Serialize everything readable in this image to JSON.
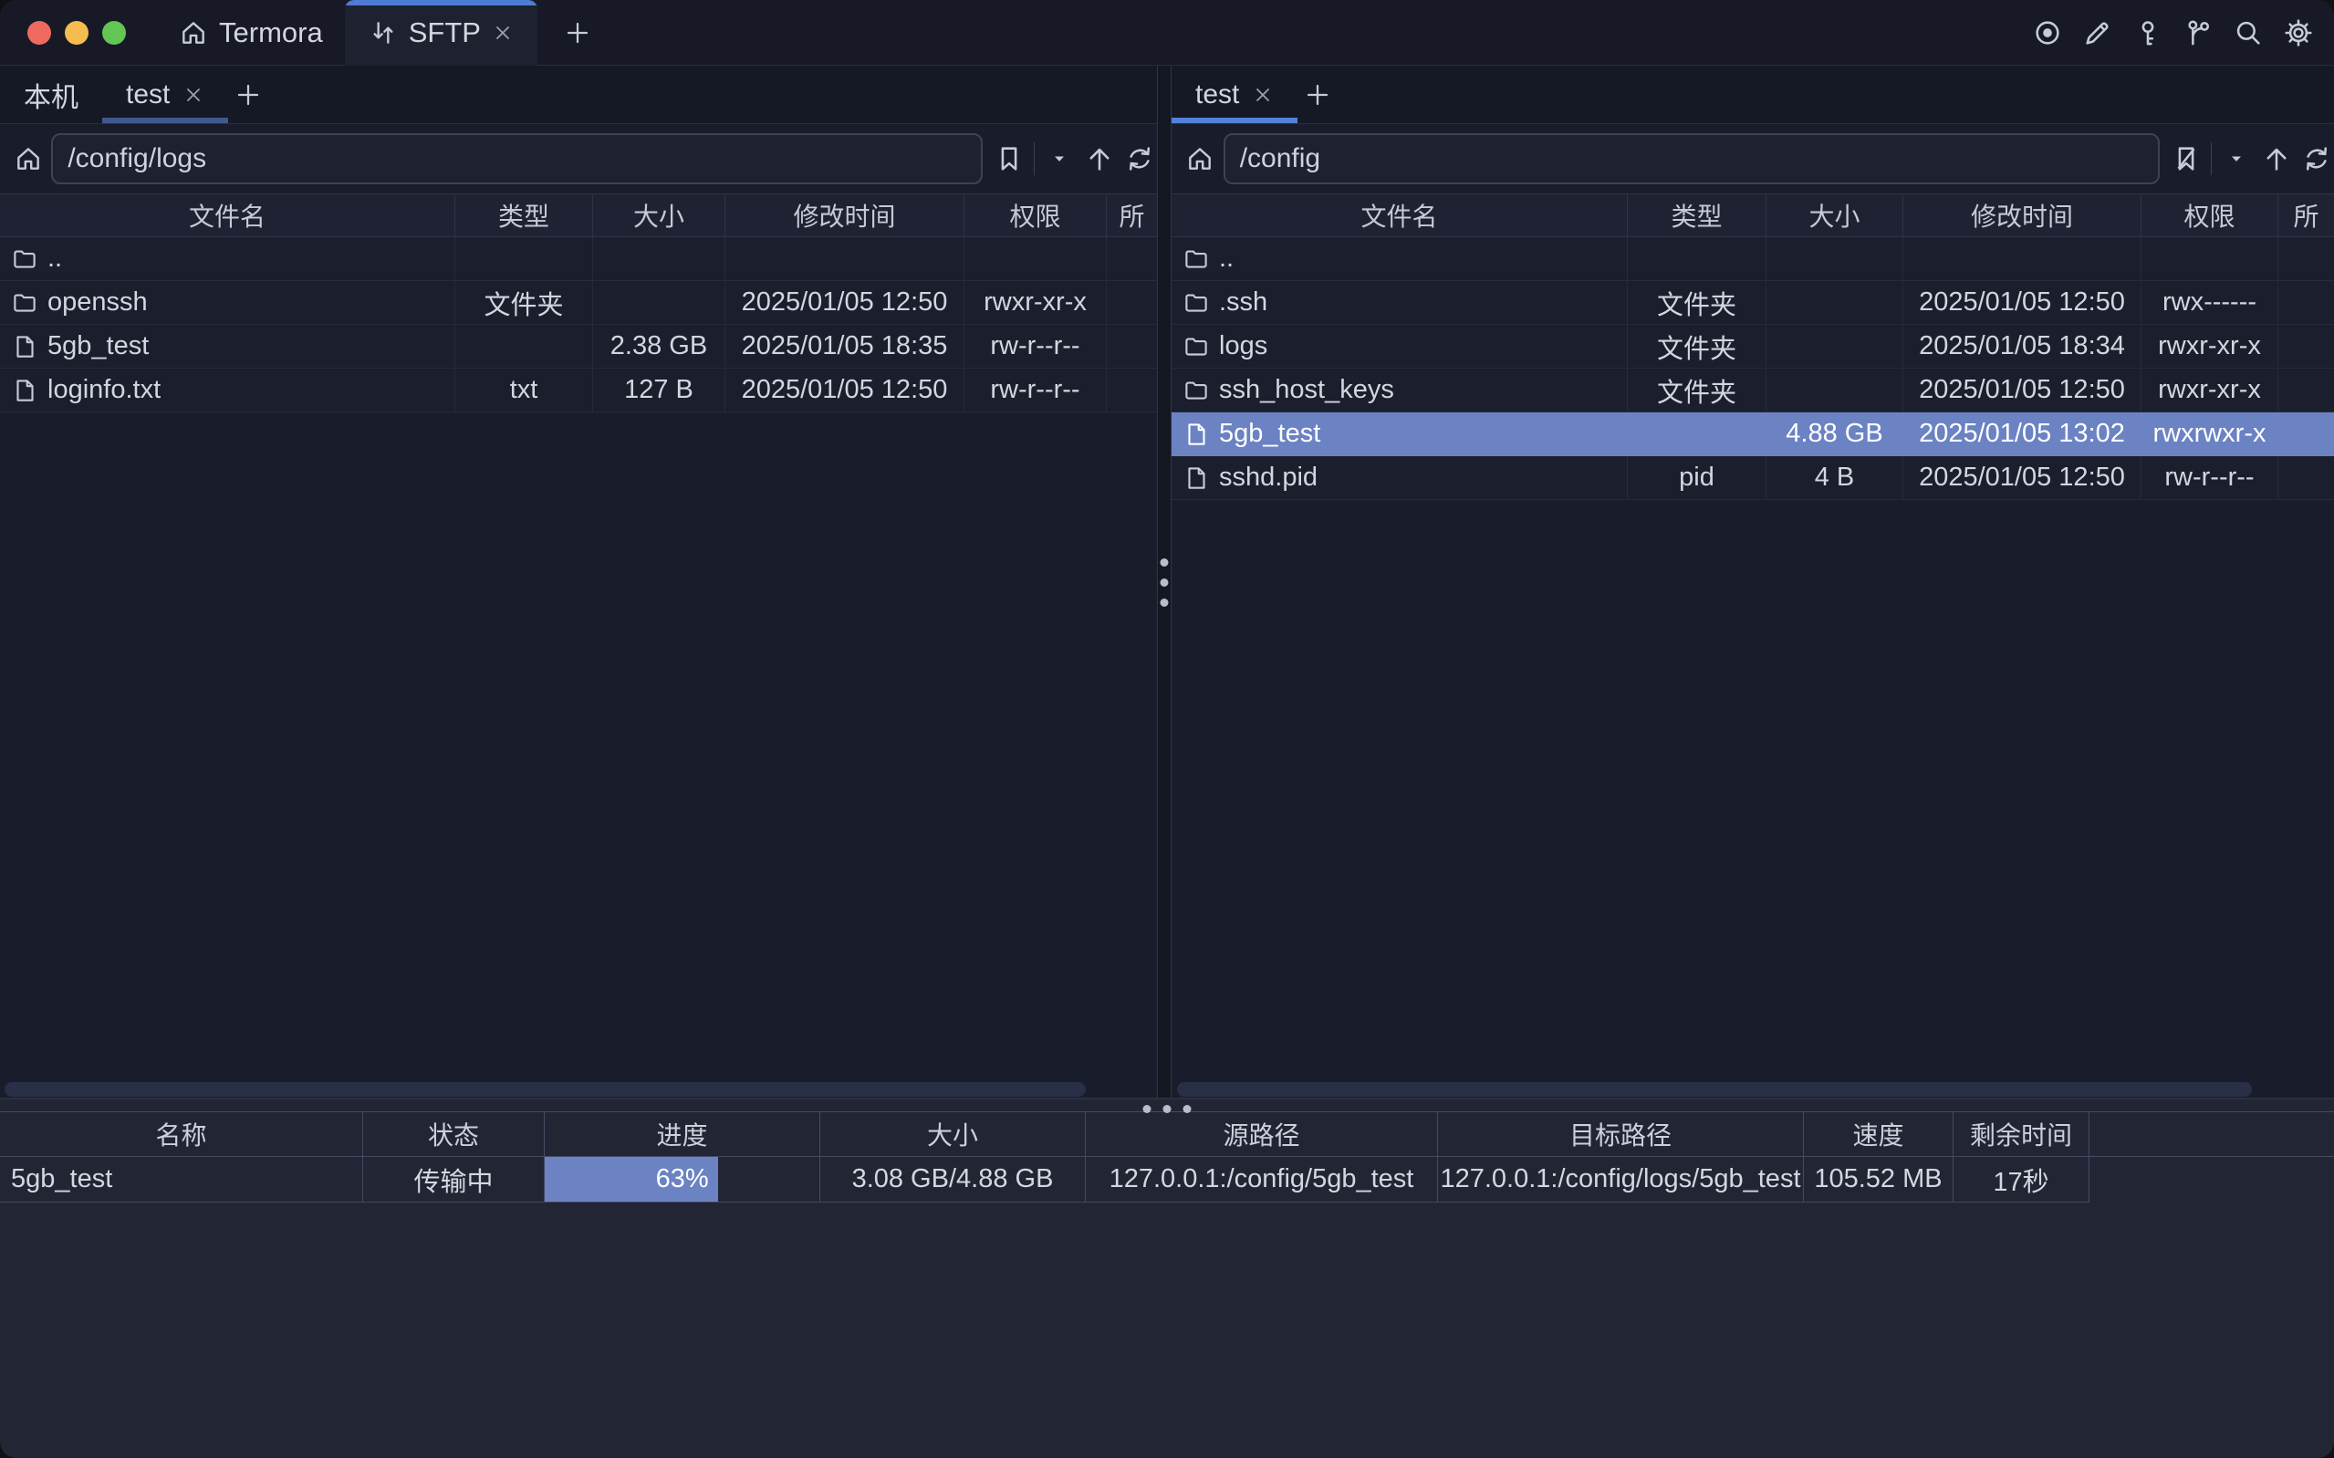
{
  "colors": {
    "accent_tab_stripe": "#4e7cd4",
    "selection": "#6b82c3",
    "underline_left_pane": "#41598c",
    "underline_right_pane": "#5282d8",
    "traffic_red": "#ee6a5f",
    "traffic_yellow": "#f5bd4f",
    "traffic_green": "#62c554"
  },
  "titlebar": {
    "app_tab_label": "Termora",
    "sftp_tab_label": "SFTP",
    "action_icons": [
      "record-icon",
      "edit-icon",
      "key-icon",
      "branch-icon",
      "search-icon",
      "settings-icon"
    ]
  },
  "left_pane": {
    "tabs": [
      {
        "label": "本机"
      },
      {
        "label": "test",
        "closable": true,
        "active": true
      }
    ],
    "path": "/config/logs",
    "columns": [
      "文件名",
      "类型",
      "大小",
      "修改时间",
      "权限",
      "所"
    ],
    "selected_index": -1,
    "rows": [
      {
        "icon": "folder",
        "name": "..",
        "type": "",
        "size": "",
        "modified": "",
        "perm": ""
      },
      {
        "icon": "folder",
        "name": "openssh",
        "type": "文件夹",
        "size": "",
        "modified": "2025/01/05 12:50",
        "perm": "rwxr-xr-x"
      },
      {
        "icon": "file",
        "name": "5gb_test",
        "type": "",
        "size": "2.38 GB",
        "modified": "2025/01/05 18:35",
        "perm": "rw-r--r--"
      },
      {
        "icon": "file",
        "name": "loginfo.txt",
        "type": "txt",
        "size": "127 B",
        "modified": "2025/01/05 12:50",
        "perm": "rw-r--r--"
      }
    ]
  },
  "right_pane": {
    "tabs": [
      {
        "label": "test",
        "closable": true,
        "active": true
      }
    ],
    "path": "/config",
    "columns": [
      "文件名",
      "类型",
      "大小",
      "修改时间",
      "权限",
      "所"
    ],
    "selected_index": 4,
    "rows": [
      {
        "icon": "folder",
        "name": "..",
        "type": "",
        "size": "",
        "modified": "",
        "perm": ""
      },
      {
        "icon": "folder",
        "name": ".ssh",
        "type": "文件夹",
        "size": "",
        "modified": "2025/01/05 12:50",
        "perm": "rwx------"
      },
      {
        "icon": "folder",
        "name": "logs",
        "type": "文件夹",
        "size": "",
        "modified": "2025/01/05 18:34",
        "perm": "rwxr-xr-x"
      },
      {
        "icon": "folder",
        "name": "ssh_host_keys",
        "type": "文件夹",
        "size": "",
        "modified": "2025/01/05 12:50",
        "perm": "rwxr-xr-x"
      },
      {
        "icon": "file",
        "name": "5gb_test",
        "type": "",
        "size": "4.88 GB",
        "modified": "2025/01/05 13:02",
        "perm": "rwxrwxr-x"
      },
      {
        "icon": "file",
        "name": "sshd.pid",
        "type": "pid",
        "size": "4 B",
        "modified": "2025/01/05 12:50",
        "perm": "rw-r--r--"
      }
    ]
  },
  "transfers": {
    "columns": [
      "名称",
      "状态",
      "进度",
      "大小",
      "源路径",
      "目标路径",
      "速度",
      "剩余时间"
    ],
    "rows": [
      {
        "name": "5gb_test",
        "status": "传输中",
        "progress": "63%",
        "progress_pct": 63,
        "size": "3.08 GB/4.88 GB",
        "source": "127.0.0.1:/config/5gb_test",
        "target": "127.0.0.1:/config/logs/5gb_test",
        "speed": "105.52 MB",
        "remaining": "17秒"
      }
    ]
  }
}
